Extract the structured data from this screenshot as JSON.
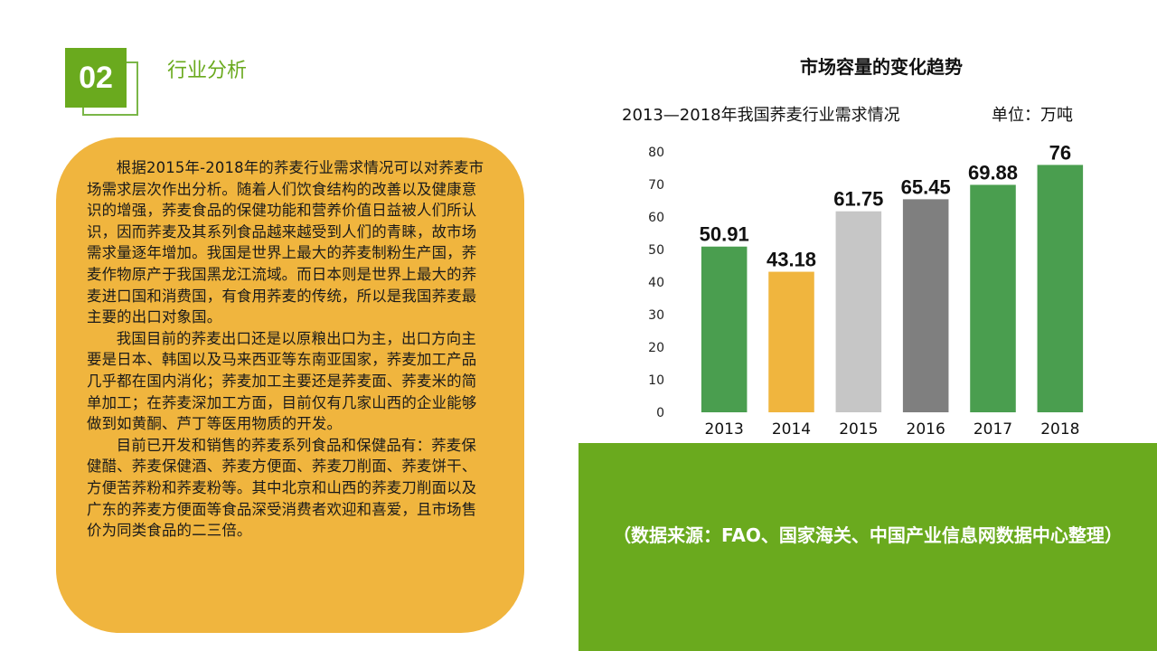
{
  "section": {
    "number": "02",
    "title": "行业分析"
  },
  "text_panel": {
    "paragraphs": [
      "根据2015年-2018年的荞麦行业需求情况可以对荞麦市场需求层次作出分析。随着人们饮食结构的改善以及健康意识的增强，荞麦食品的保健功能和营养价值日益被人们所认识，因而荞麦及其系列食品越来越受到人们的青睐，故市场需求量逐年增加。我国是世界上最大的荞麦制粉生产国，荞麦作物原产于我国黑龙江流域。而日本则是世界上最大的荞麦进口国和消费国，有食用荞麦的传统，所以是我国荞麦最主要的出口对象国。",
      "我国目前的荞麦出口还是以原粮出口为主，出口方向主要是日本、韩国以及马来西亚等东南亚国家，荞麦加工产品几乎都在国内消化；荞麦加工主要还是荞麦面、荞麦米的简单加工；在荞麦深加工方面，目前仅有几家山西的企业能够做到如黄酮、芦丁等医用物质的开发。",
      "目前已开发和销售的荞麦系列食品和保健品有：荞麦保健醋、荞麦保健酒、荞麦方便面、荞麦刀削面、荞麦饼干、方便苦荞粉和荞麦粉等。其中北京和山西的荞麦刀削面以及广东的荞麦方便面等食品深受消费者欢迎和喜爱，且市场售价为同类食品的二三倍。"
    ]
  },
  "chart_heading": "市场容量的变化趋势",
  "chart_subtitle": "2013—2018年我国荞麦行业需求情况",
  "chart_unit": "单位：万吨",
  "chart_data": {
    "type": "bar",
    "title": "2013—2018年我国荞麦行业需求情况",
    "categories": [
      "2013",
      "2014",
      "2015",
      "2016",
      "2017",
      "2018"
    ],
    "values": [
      50.91,
      43.18,
      61.75,
      65.45,
      69.88,
      76
    ],
    "data_labels": [
      "50.91",
      "43.18",
      "61.75",
      "65.45",
      "69.88",
      "76"
    ],
    "bar_colors": [
      "#4a9e4f",
      "#f0b53e",
      "#c6c6c6",
      "#7f7f7f",
      "#4a9e4f",
      "#4a9e4f"
    ],
    "y_ticks": [
      "0",
      "10",
      "20",
      "30",
      "40",
      "50",
      "60",
      "70",
      "80"
    ],
    "ylim": [
      0,
      80
    ],
    "xlabel": "",
    "ylabel": "",
    "grid": false,
    "legend": "none"
  },
  "source": "（数据来源：FAO、国家海关、中国产业信息网数据中心整理）"
}
